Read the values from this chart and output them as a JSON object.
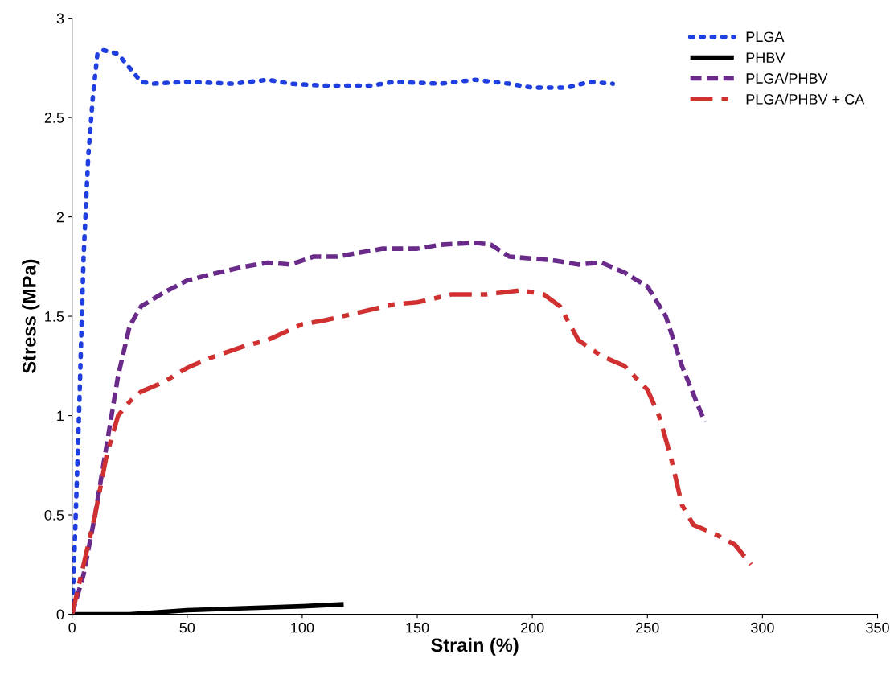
{
  "chart_data": {
    "type": "line",
    "xlabel": "Strain (%)",
    "ylabel": "Stress (MPa)",
    "xlim": [
      0,
      350
    ],
    "xticks": [
      0,
      50,
      100,
      150,
      200,
      250,
      300,
      350
    ],
    "ylim": [
      0,
      3
    ],
    "yticks": [
      0,
      0.5,
      1,
      1.5,
      2,
      2.5,
      3
    ],
    "grid": false,
    "legend": "top right",
    "marker": "none",
    "series": [
      {
        "name": "PLGA",
        "color": "#1f3fe0",
        "line_style": "dotted",
        "x": [
          0,
          1,
          3,
          5,
          7,
          9,
          11,
          13,
          17,
          20,
          25,
          30,
          35,
          50,
          70,
          85,
          95,
          110,
          130,
          140,
          160,
          175,
          190,
          200,
          215,
          225,
          235
        ],
        "values": [
          0,
          0.3,
          1.0,
          1.8,
          2.3,
          2.6,
          2.82,
          2.84,
          2.83,
          2.82,
          2.75,
          2.68,
          2.67,
          2.68,
          2.67,
          2.69,
          2.67,
          2.66,
          2.66,
          2.68,
          2.67,
          2.69,
          2.67,
          2.65,
          2.65,
          2.68,
          2.67
        ]
      },
      {
        "name": "PHBV",
        "color": "#000000",
        "line_style": "solid",
        "x": [
          0,
          25,
          50,
          75,
          100,
          118
        ],
        "values": [
          0,
          0.0,
          0.02,
          0.03,
          0.04,
          0.05
        ]
      },
      {
        "name": "PLGA/PHBV",
        "color": "#6a2a8a",
        "line_style": "dashed",
        "x": [
          0,
          5,
          10,
          15,
          20,
          25,
          30,
          40,
          50,
          60,
          75,
          85,
          95,
          105,
          115,
          125,
          135,
          150,
          160,
          175,
          182,
          190,
          200,
          210,
          220,
          230,
          240,
          250,
          258,
          265,
          272,
          275
        ],
        "values": [
          0,
          0.2,
          0.5,
          0.85,
          1.2,
          1.45,
          1.55,
          1.62,
          1.68,
          1.71,
          1.75,
          1.77,
          1.76,
          1.8,
          1.8,
          1.82,
          1.84,
          1.84,
          1.86,
          1.87,
          1.86,
          1.8,
          1.79,
          1.78,
          1.76,
          1.77,
          1.72,
          1.65,
          1.5,
          1.25,
          1.05,
          0.97
        ]
      },
      {
        "name": "PLGA/PHBV + CA",
        "color": "#d03030",
        "line_style": "dashdot",
        "x": [
          0,
          5,
          10,
          15,
          20,
          25,
          30,
          40,
          50,
          60,
          75,
          85,
          100,
          110,
          125,
          140,
          150,
          165,
          180,
          195,
          205,
          212,
          220,
          230,
          240,
          250,
          255,
          260,
          265,
          270,
          280,
          288,
          295
        ],
        "values": [
          0,
          0.25,
          0.5,
          0.8,
          1.0,
          1.07,
          1.12,
          1.17,
          1.24,
          1.29,
          1.35,
          1.38,
          1.46,
          1.48,
          1.52,
          1.56,
          1.57,
          1.61,
          1.61,
          1.63,
          1.61,
          1.55,
          1.38,
          1.3,
          1.25,
          1.13,
          1.0,
          0.8,
          0.55,
          0.45,
          0.4,
          0.35,
          0.25
        ]
      }
    ]
  }
}
